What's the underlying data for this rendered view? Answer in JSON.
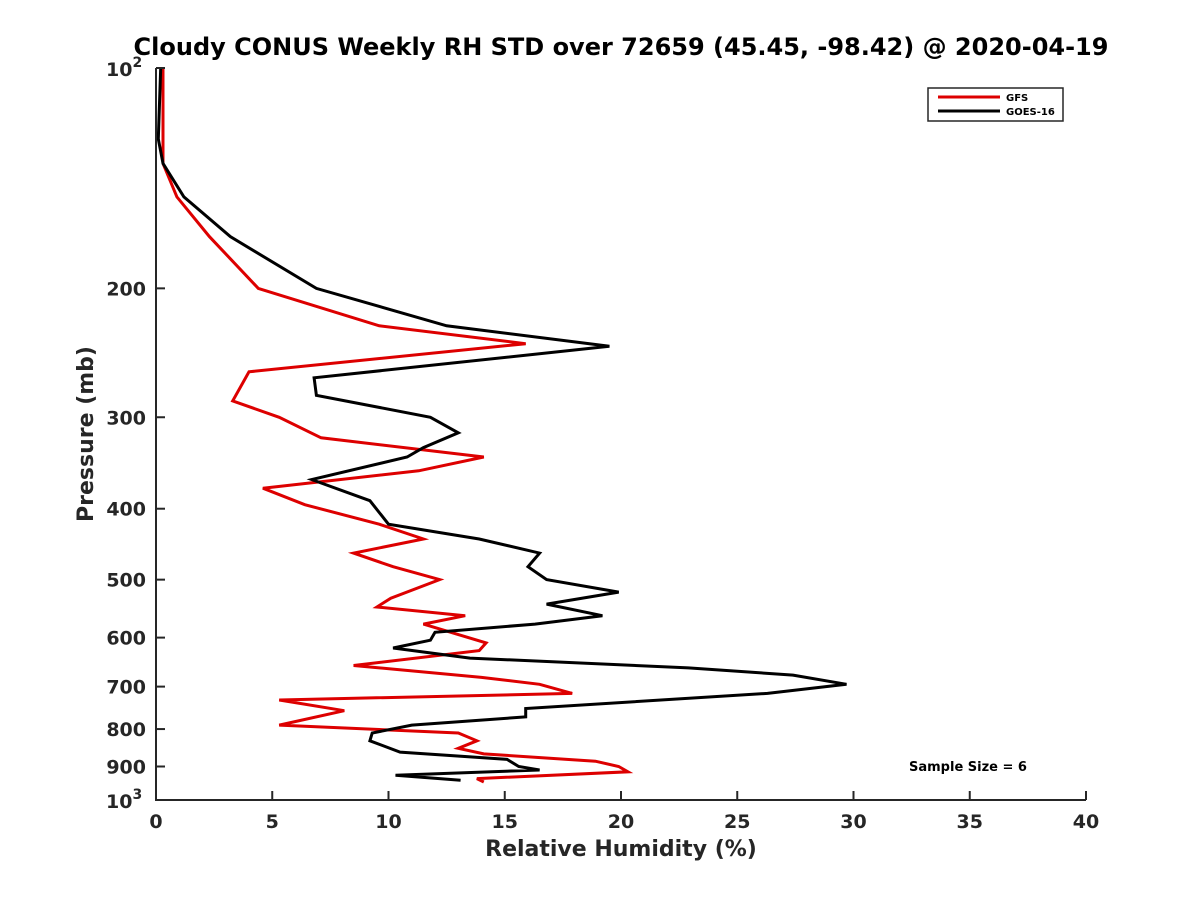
{
  "chart_data": {
    "type": "line",
    "title": "Cloudy CONUS Weekly RH STD over 72659 (45.45, -98.42) @ 2020-04-19",
    "xlabel": "Relative Humidity (%)",
    "ylabel": "Pressure (mb)",
    "xlim": [
      0,
      40
    ],
    "ylim": [
      100,
      1000
    ],
    "y_scale": "log",
    "y_reversed": true,
    "grid": false,
    "legend_position": "top-right",
    "x_ticks": [
      "0",
      "5",
      "10",
      "15",
      "20",
      "25",
      "30",
      "35",
      "40"
    ],
    "y_ticks": [
      {
        "value": 100,
        "base": "10",
        "exp": "2"
      },
      {
        "value": 200,
        "label": "200"
      },
      {
        "value": 300,
        "label": "300"
      },
      {
        "value": 400,
        "label": "400"
      },
      {
        "value": 500,
        "label": "500"
      },
      {
        "value": 600,
        "label": "600"
      },
      {
        "value": 700,
        "label": "700"
      },
      {
        "value": 800,
        "label": "800"
      },
      {
        "value": 900,
        "label": "900"
      },
      {
        "value": 1000,
        "base": "10",
        "exp": "3"
      }
    ],
    "annotation": "Sample Size = 6",
    "series": [
      {
        "name": "GFS",
        "color": "#dd0000",
        "points": [
          [
            0.3,
            100
          ],
          [
            0.3,
            125
          ],
          [
            0.3,
            135
          ],
          [
            0.9,
            150
          ],
          [
            2.3,
            170
          ],
          [
            4.4,
            200
          ],
          [
            9.6,
            225
          ],
          [
            15.9,
            238
          ],
          [
            4.0,
            260
          ],
          [
            3.3,
            285
          ],
          [
            5.3,
            300
          ],
          [
            7.1,
            320
          ],
          [
            14.1,
            340
          ],
          [
            11.3,
            355
          ],
          [
            4.6,
            375
          ],
          [
            6.4,
            395
          ],
          [
            9.6,
            420
          ],
          [
            11.5,
            440
          ],
          [
            8.5,
            460
          ],
          [
            10.2,
            480
          ],
          [
            12.2,
            500
          ],
          [
            10.1,
            530
          ],
          [
            9.5,
            545
          ],
          [
            13.3,
            560
          ],
          [
            11.5,
            575
          ],
          [
            14.2,
            610
          ],
          [
            13.9,
            625
          ],
          [
            8.5,
            655
          ],
          [
            14.0,
            680
          ],
          [
            16.5,
            695
          ],
          [
            17.9,
            715
          ],
          [
            5.3,
            730
          ],
          [
            8.1,
            755
          ],
          [
            5.3,
            790
          ],
          [
            13.0,
            810
          ],
          [
            13.8,
            830
          ],
          [
            13.0,
            850
          ],
          [
            14.1,
            865
          ],
          [
            18.9,
            885
          ],
          [
            19.9,
            900
          ],
          [
            20.3,
            915
          ],
          [
            13.8,
            935
          ],
          [
            14.1,
            945
          ]
        ]
      },
      {
        "name": "GOES-16",
        "color": "#000000",
        "points": [
          [
            0.2,
            100
          ],
          [
            0.1,
            125
          ],
          [
            0.3,
            135
          ],
          [
            1.2,
            150
          ],
          [
            3.2,
            170
          ],
          [
            6.9,
            200
          ],
          [
            12.5,
            225
          ],
          [
            19.5,
            240
          ],
          [
            6.8,
            265
          ],
          [
            6.9,
            280
          ],
          [
            11.8,
            300
          ],
          [
            13.0,
            315
          ],
          [
            11.5,
            330
          ],
          [
            10.8,
            340
          ],
          [
            6.7,
            365
          ],
          [
            9.2,
            390
          ],
          [
            10.0,
            420
          ],
          [
            13.9,
            440
          ],
          [
            16.5,
            460
          ],
          [
            16.0,
            480
          ],
          [
            16.8,
            500
          ],
          [
            19.9,
            520
          ],
          [
            16.8,
            540
          ],
          [
            19.2,
            560
          ],
          [
            16.3,
            575
          ],
          [
            12.0,
            590
          ],
          [
            11.8,
            605
          ],
          [
            10.2,
            620
          ],
          [
            13.5,
            640
          ],
          [
            22.9,
            660
          ],
          [
            27.4,
            675
          ],
          [
            29.7,
            695
          ],
          [
            26.3,
            715
          ],
          [
            15.9,
            750
          ],
          [
            15.9,
            770
          ],
          [
            11.0,
            790
          ],
          [
            9.3,
            810
          ],
          [
            9.2,
            830
          ],
          [
            10.5,
            860
          ],
          [
            15.1,
            880
          ],
          [
            15.6,
            900
          ],
          [
            16.5,
            910
          ],
          [
            10.3,
            925
          ],
          [
            13.1,
            940
          ]
        ]
      }
    ]
  }
}
